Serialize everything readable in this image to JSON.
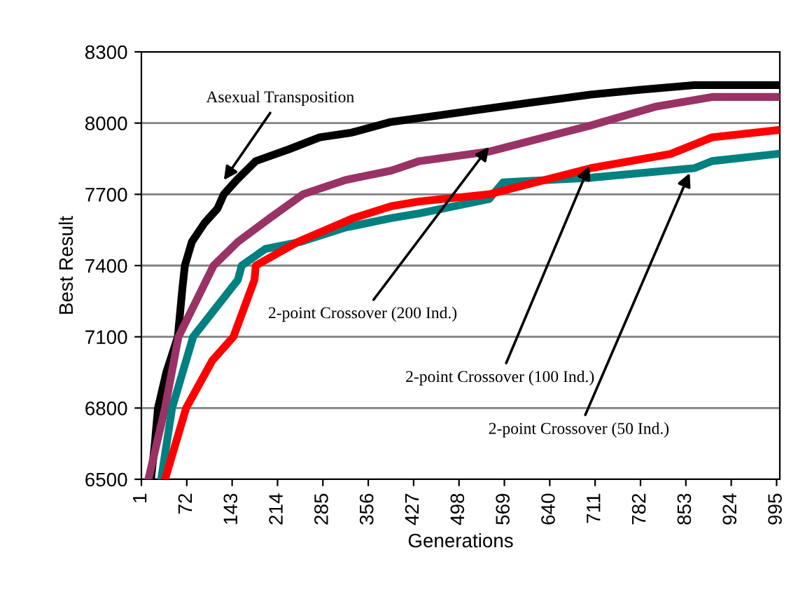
{
  "chart_data": {
    "type": "line",
    "xlabel": "Generations",
    "ylabel": "Best Result",
    "xlim": [
      1,
      1000
    ],
    "ylim": [
      6500,
      8300
    ],
    "xticks": [
      1,
      72,
      143,
      214,
      285,
      356,
      427,
      498,
      569,
      640,
      711,
      782,
      853,
      924,
      995
    ],
    "yticks": [
      6500,
      6800,
      7100,
      7400,
      7700,
      8000,
      8300
    ],
    "grid": "y",
    "legend": false,
    "marker": "none",
    "line_style": "solid",
    "series": [
      {
        "color": "#000000",
        "x": [
          16,
          22,
          27,
          40,
          58,
          65,
          69,
          80,
          100,
          120,
          130,
          150,
          180,
          232,
          280,
          330,
          392,
          460,
          540,
          620,
          704,
          780,
          866,
          995
        ],
        "values": [
          6500,
          6650,
          6800,
          6950,
          7100,
          7300,
          7400,
          7500,
          7580,
          7640,
          7700,
          7760,
          7840,
          7890,
          7940,
          7960,
          8005,
          8030,
          8060,
          8090,
          8120,
          8140,
          8160,
          8160
        ]
      },
      {
        "color": "#993366",
        "x": [
          12,
          38,
          59,
          114,
          152,
          202,
          254,
          320,
          392,
          436,
          545,
          704,
          807,
          894,
          995
        ],
        "values": [
          6500,
          6800,
          7100,
          7400,
          7500,
          7600,
          7700,
          7760,
          7800,
          7840,
          7880,
          7990,
          8070,
          8110,
          8110
        ]
      },
      {
        "color": "#008080",
        "x": [
          32,
          49,
          82,
          152,
          158,
          195,
          250,
          320,
          392,
          436,
          545,
          567,
          704,
          866,
          894,
          995
        ],
        "values": [
          6500,
          6800,
          7100,
          7340,
          7400,
          7470,
          7500,
          7560,
          7600,
          7620,
          7680,
          7750,
          7770,
          7810,
          7840,
          7870
        ]
      },
      {
        "color": "#ff0000",
        "x": [
          38,
          71,
          112,
          145,
          178,
          180,
          246,
          333,
          392,
          436,
          545,
          704,
          829,
          894,
          995
        ],
        "values": [
          6500,
          6800,
          7000,
          7100,
          7340,
          7400,
          7500,
          7600,
          7650,
          7670,
          7700,
          7810,
          7870,
          7940,
          7970
        ]
      }
    ],
    "annotations": [
      {
        "text": "Asexual Transposition",
        "x": 130,
        "y": 7760
      },
      {
        "text": "2-point Crossover (200 Ind.)",
        "x": 545,
        "y": 7900
      },
      {
        "text": "2-point Crossover (100 Ind.)",
        "x": 702,
        "y": 7820
      },
      {
        "text": "2-point Crossover (50 Ind.)",
        "x": 859,
        "y": 7790
      }
    ]
  }
}
